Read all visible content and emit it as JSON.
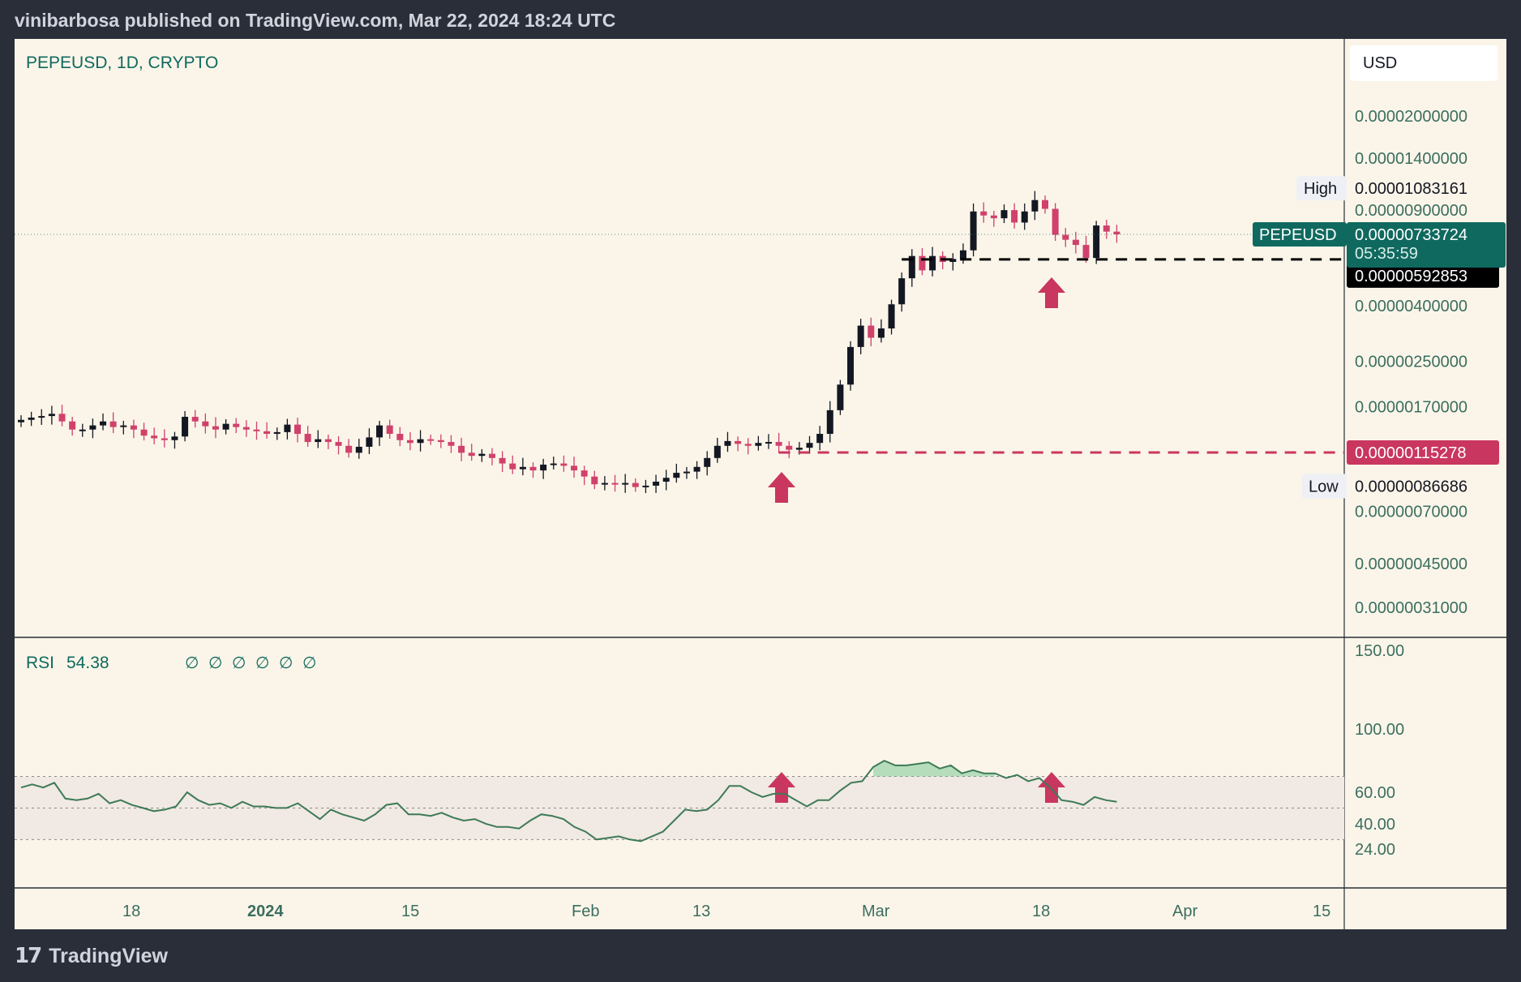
{
  "header": {
    "published": "vinibarbosa published on TradingView.com, Mar 22, 2024 18:24 UTC"
  },
  "footer": {
    "logo": "TradingView",
    "logo_icon": "tradingview-logo-icon"
  },
  "currency": "USD",
  "colors": {
    "bull": "#131722",
    "bear": "#d0416c",
    "accent": "#10695f",
    "rsi_line": "#3d7a57",
    "support_black": "#000000",
    "support_red": "#c9365f",
    "bg": "#fbf5e9",
    "arrow": "#c9365f"
  },
  "chart_data": [
    {
      "type": "candlestick",
      "title": "PEPEUSD, 1D, CRYPTO",
      "scale": "log",
      "ylim": [
        2.6e-07,
        2.5e-05
      ],
      "y_ticks": [
        "0.00002000000",
        "0.00001400000",
        "0.00000900000",
        "0.00000400000",
        "0.00000250000",
        "0.00000170000",
        "0.00000070000",
        "0.00000045000",
        "0.00000031000"
      ],
      "x_ticks": [
        "18",
        "2024",
        "15",
        "Feb",
        "13",
        "Mar",
        "18",
        "Apr",
        "15"
      ],
      "high_label": "High",
      "high_value": "0.00001083161",
      "low_label": "Low",
      "low_value": "0.00000086686",
      "last_symbol": "PEPEUSD",
      "last_value": "0.00000733724",
      "countdown": "05:35:59",
      "support_levels": [
        {
          "value": 5.92853e-06,
          "label": "0.00000592853",
          "color": "black"
        },
        {
          "value": 1.15278e-06,
          "label": "0.00000115278",
          "color": "red"
        }
      ],
      "markers": [
        {
          "date": "Feb 20",
          "type": "arrow-up"
        },
        {
          "date": "Mar 18",
          "type": "arrow-up"
        }
      ],
      "closes": [
        1.52,
        1.55,
        1.57,
        1.6,
        1.5,
        1.4,
        1.4,
        1.45,
        1.5,
        1.43,
        1.45,
        1.4,
        1.33,
        1.3,
        1.28,
        1.32,
        1.56,
        1.5,
        1.44,
        1.4,
        1.47,
        1.43,
        1.4,
        1.38,
        1.35,
        1.37,
        1.46,
        1.35,
        1.26,
        1.29,
        1.26,
        1.22,
        1.15,
        1.21,
        1.31,
        1.45,
        1.35,
        1.28,
        1.25,
        1.29,
        1.28,
        1.26,
        1.22,
        1.15,
        1.12,
        1.14,
        1.1,
        1.05,
        1.0,
        1.02,
        0.99,
        1.04,
        1.05,
        1.03,
        0.99,
        0.94,
        0.88,
        0.89,
        0.88,
        0.89,
        0.86,
        0.87,
        0.9,
        0.93,
        0.97,
        0.98,
        1.02,
        1.1,
        1.22,
        1.27,
        1.24,
        1.22,
        1.25,
        1.26,
        1.22,
        1.18,
        1.2,
        1.25,
        1.35,
        1.65,
        2.05,
        2.82,
        3.38,
        3.05,
        3.3,
        4.05,
        5.05,
        6.1,
        5.4,
        6.1,
        5.8,
        5.95,
        6.4,
        8.9,
        8.6,
        8.4,
        9.0,
        8.1,
        8.9,
        9.8,
        9.1,
        7.3,
        7.0,
        6.7,
        6.0,
        7.9,
        7.5,
        7.33
      ],
      "series_start": "Dec 5, 2023",
      "series_end": "Mar 22, 2024"
    },
    {
      "type": "line",
      "title": "RSI",
      "value_label": "54.38",
      "params": [
        "∅",
        "∅",
        "∅",
        "∅",
        "∅",
        "∅"
      ],
      "ylim": [
        10,
        160
      ],
      "y_ticks": [
        "150.00",
        "100.00",
        "60.00",
        "40.00",
        "24.00"
      ],
      "bands": [
        70,
        50,
        30
      ],
      "values": [
        63,
        65,
        63,
        66,
        56,
        55,
        56,
        59,
        53,
        55,
        52,
        50,
        48,
        49,
        51,
        60,
        55,
        52,
        53,
        50,
        54,
        51,
        51,
        50,
        50,
        53,
        48,
        43,
        49,
        46,
        44,
        42,
        46,
        52,
        53,
        46,
        46,
        45,
        47,
        44,
        42,
        43,
        40,
        38,
        38,
        37,
        42,
        46,
        45,
        43,
        38,
        35,
        30,
        31,
        32,
        30,
        29,
        32,
        35,
        42,
        49,
        48,
        49,
        55,
        64,
        64,
        60,
        57,
        59,
        59,
        55,
        51,
        55,
        55,
        61,
        66,
        67,
        76,
        80,
        77,
        77,
        78,
        79,
        75,
        77,
        72,
        74,
        72,
        72,
        69,
        71,
        67,
        69,
        63,
        55,
        54,
        52,
        57,
        55,
        54
      ]
    }
  ]
}
